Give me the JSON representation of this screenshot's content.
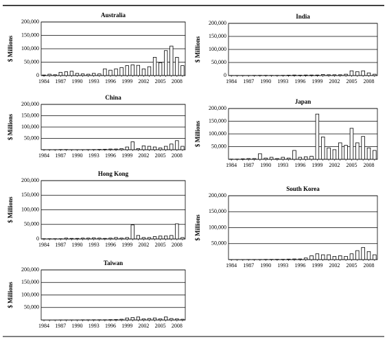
{
  "chart_data": [
    {
      "type": "bar",
      "title": "Australia",
      "y_label": "$ Millions",
      "categories": [
        "1984",
        null,
        null,
        "1987",
        null,
        null,
        "1990",
        null,
        null,
        "1993",
        null,
        null,
        "1996",
        null,
        null,
        "1999",
        null,
        null,
        "2002",
        null,
        null,
        "2005",
        null,
        null,
        "2008",
        null
      ],
      "values": [
        2000,
        5000,
        3000,
        12000,
        14000,
        16000,
        8000,
        6000,
        5000,
        8000,
        6000,
        25000,
        20000,
        25000,
        30000,
        37000,
        40000,
        38000,
        25000,
        33000,
        68000,
        48000,
        93000,
        110000,
        68000,
        37000
      ],
      "ylim": [
        0,
        200000
      ],
      "yticks": [
        0,
        {
          "value": 50000,
          "label": "50,000"
        },
        {
          "value": 100000,
          "label": "100,000"
        },
        {
          "value": 150000,
          "label": "150,000"
        },
        {
          "value": 200000,
          "label": "200,000"
        }
      ],
      "grid": true,
      "color": "#ffffff"
    },
    {
      "type": "bar",
      "title": "India",
      "y_label": "$ Millions",
      "categories": [
        "1984",
        null,
        null,
        "1987",
        null,
        null,
        "1990",
        null,
        null,
        "1993",
        null,
        null,
        "1996",
        null,
        null,
        "1999",
        null,
        null,
        "2002",
        null,
        null,
        "2005",
        null,
        null,
        "2008",
        null
      ],
      "values": [
        500,
        500,
        500,
        500,
        800,
        1000,
        1000,
        800,
        800,
        1000,
        1500,
        2000,
        1500,
        2000,
        2000,
        2000,
        4000,
        3000,
        3000,
        3000,
        5000,
        18000,
        15000,
        18000,
        10000,
        5000
      ],
      "ylim": [
        0,
        200000
      ],
      "yticks": [
        0,
        {
          "value": 50000,
          "label": "50,000"
        },
        {
          "value": 100000,
          "label": "100,000"
        },
        {
          "value": 150000,
          "label": "150,000"
        },
        {
          "value": 200000,
          "label": "200,000"
        }
      ],
      "grid": true,
      "color": "#ffffff"
    },
    {
      "type": "bar",
      "title": "China",
      "y_label": "$ Millions",
      "categories": [
        "1984",
        null,
        null,
        "1987",
        null,
        null,
        "1990",
        null,
        null,
        "1993",
        null,
        null,
        "1996",
        null,
        null,
        "1999",
        null,
        null,
        "2002",
        null,
        null,
        "2005",
        null,
        null,
        "2008",
        null
      ],
      "values": [
        500,
        500,
        500,
        1000,
        1000,
        500,
        500,
        500,
        800,
        1000,
        1500,
        2000,
        3000,
        3000,
        5000,
        12000,
        35000,
        5000,
        17000,
        15000,
        12000,
        8000,
        15000,
        25000,
        40000,
        15000
      ],
      "ylim": [
        0,
        200000
      ],
      "yticks": [
        {
          "value": 50000,
          "label": "50,000"
        },
        {
          "value": 100000,
          "label": "100,000"
        },
        {
          "value": 150000,
          "label": "150,000"
        },
        {
          "value": 200000,
          "label": "200,000"
        }
      ],
      "grid": true,
      "color": "#ffffff"
    },
    {
      "type": "bar",
      "title": "Japan",
      "y_label": "$ Millions",
      "categories": [
        "1984",
        null,
        null,
        "1987",
        null,
        null,
        "1990",
        null,
        null,
        "1993",
        null,
        null,
        "1996",
        null,
        null,
        "1999",
        null,
        null,
        "2002",
        null,
        null,
        "2005",
        null,
        null,
        "2008",
        null
      ],
      "values": [
        1000,
        1000,
        2000,
        3000,
        3000,
        22000,
        5000,
        8000,
        3000,
        8000,
        5000,
        35000,
        8000,
        10000,
        12000,
        178000,
        88000,
        45000,
        38000,
        65000,
        55000,
        122000,
        65000,
        90000,
        45000,
        35000
      ],
      "ylim": [
        0,
        200000
      ],
      "yticks": [
        {
          "value": 50000,
          "label": "50,000"
        },
        {
          "value": 100000,
          "label": "100,000"
        },
        {
          "value": 150000,
          "label": "150,000"
        },
        {
          "value": 200000,
          "label": "200,000"
        }
      ],
      "grid": true,
      "color": "#ffffff"
    },
    {
      "type": "bar",
      "title": "Hong Kong",
      "y_label": "$ Millions",
      "categories": [
        "1984",
        null,
        null,
        "1987",
        null,
        null,
        "1990",
        null,
        null,
        "1993",
        null,
        null,
        "1996",
        null,
        null,
        "1999",
        null,
        null,
        "2002",
        null,
        null,
        "2005",
        null,
        null,
        "2008",
        null
      ],
      "values": [
        1000,
        1000,
        1000,
        1000,
        3000,
        2000,
        2000,
        3000,
        3000,
        4000,
        3000,
        2000,
        3000,
        5000,
        3000,
        5000,
        48000,
        12000,
        5000,
        5000,
        8000,
        10000,
        10000,
        12000,
        52000,
        5000
      ],
      "ylim": [
        0,
        200000
      ],
      "yticks": [
        0,
        {
          "value": 50000,
          "label": "50,000"
        },
        {
          "value": 100000,
          "label": "100,000"
        },
        {
          "value": 150000,
          "label": "150,000"
        },
        {
          "value": 200000,
          "label": "200,000"
        }
      ],
      "grid": true,
      "color": "#ffffff"
    },
    {
      "type": "bar",
      "title": "South Korea",
      "y_label": "$ Millions",
      "categories": [
        "1984",
        null,
        null,
        "1987",
        null,
        null,
        "1990",
        null,
        null,
        "1993",
        null,
        null,
        "1996",
        null,
        null,
        "1999",
        null,
        null,
        "2002",
        null,
        null,
        "2005",
        null,
        null,
        "2008",
        null
      ],
      "values": [
        300,
        300,
        300,
        500,
        500,
        500,
        800,
        800,
        1000,
        1000,
        1500,
        2000,
        2000,
        5000,
        12000,
        18000,
        15000,
        15000,
        10000,
        12000,
        10000,
        18000,
        28000,
        38000,
        25000,
        15000
      ],
      "ylim": [
        0,
        200000
      ],
      "yticks": [
        {
          "value": 50000,
          "label": "50,000"
        },
        {
          "value": 100000,
          "label": "100,000"
        },
        {
          "value": 150000,
          "label": "150,000"
        },
        {
          "value": 200000,
          "label": "200,000"
        }
      ],
      "grid": true,
      "color": "#ffffff"
    },
    {
      "type": "bar",
      "title": "Taiwan",
      "y_label": "$ Millions",
      "categories": [
        "1984",
        null,
        null,
        "1987",
        null,
        null,
        "1990",
        null,
        null,
        "1993",
        null,
        null,
        "1996",
        null,
        null,
        "1999",
        null,
        null,
        "2002",
        null,
        null,
        "2005",
        null,
        null,
        "2008",
        null
      ],
      "values": [
        300,
        300,
        300,
        500,
        500,
        500,
        500,
        800,
        800,
        1000,
        1000,
        1000,
        1500,
        2000,
        3000,
        8000,
        10000,
        12000,
        5000,
        6000,
        8000,
        5000,
        12000,
        6000,
        5000,
        3000
      ],
      "ylim": [
        0,
        200000
      ],
      "yticks": [
        {
          "value": 50000,
          "label": "50,000"
        },
        {
          "value": 100000,
          "label": "100,000"
        },
        {
          "value": 150000,
          "label": "150,000"
        },
        {
          "value": 200000,
          "label": "200,000"
        }
      ],
      "grid": true,
      "color": "#ffffff"
    }
  ]
}
